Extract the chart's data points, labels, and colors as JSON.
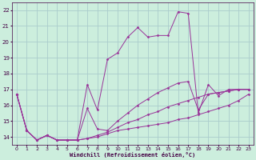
{
  "xlabel": "Windchill (Refroidissement éolien,°C)",
  "bg_color": "#cceedd",
  "grid_color": "#aacccc",
  "line_color": "#993399",
  "marker_color": "#993399",
  "xlim": [
    -0.5,
    23.5
  ],
  "ylim": [
    13.5,
    22.5
  ],
  "yticks": [
    14,
    15,
    16,
    17,
    18,
    19,
    20,
    21,
    22
  ],
  "xticks": [
    0,
    1,
    2,
    3,
    4,
    5,
    6,
    7,
    8,
    9,
    10,
    11,
    12,
    13,
    14,
    15,
    16,
    17,
    18,
    19,
    20,
    21,
    22,
    23
  ],
  "series": [
    {
      "x": [
        0,
        1,
        2,
        3,
        4,
        5,
        6,
        7,
        8,
        9,
        10,
        11,
        12,
        13,
        14,
        15,
        16,
        17,
        18,
        19,
        20,
        21,
        22,
        23
      ],
      "y": [
        16.7,
        14.4,
        13.8,
        14.1,
        13.8,
        13.8,
        13.8,
        13.9,
        14.0,
        14.2,
        14.4,
        14.5,
        14.6,
        14.7,
        14.8,
        14.9,
        15.1,
        15.2,
        15.4,
        15.6,
        15.8,
        16.0,
        16.3,
        16.7
      ]
    },
    {
      "x": [
        0,
        1,
        2,
        3,
        4,
        5,
        6,
        7,
        8,
        9,
        10,
        11,
        12,
        13,
        14,
        15,
        16,
        17,
        18,
        19,
        20,
        21,
        22,
        23
      ],
      "y": [
        16.7,
        14.4,
        13.8,
        14.1,
        13.8,
        13.8,
        13.8,
        13.9,
        14.1,
        14.3,
        14.6,
        14.9,
        15.1,
        15.4,
        15.6,
        15.9,
        16.1,
        16.3,
        16.5,
        16.7,
        16.8,
        16.9,
        17.0,
        17.0
      ]
    },
    {
      "x": [
        0,
        1,
        2,
        3,
        4,
        5,
        6,
        7,
        8,
        9,
        10,
        11,
        12,
        13,
        14,
        15,
        16,
        17,
        18,
        19,
        20,
        21,
        22,
        23
      ],
      "y": [
        16.7,
        14.4,
        13.8,
        14.1,
        13.8,
        13.8,
        13.8,
        15.8,
        14.5,
        14.4,
        15.0,
        15.5,
        16.0,
        16.4,
        16.8,
        17.1,
        17.4,
        17.5,
        15.7,
        16.7,
        16.8,
        16.9,
        17.0,
        17.0
      ]
    },
    {
      "x": [
        0,
        1,
        2,
        3,
        4,
        5,
        6,
        7,
        8,
        9,
        10,
        11,
        12,
        13,
        14,
        15,
        16,
        17,
        18,
        19,
        20,
        21,
        22,
        23
      ],
      "y": [
        16.7,
        14.4,
        13.8,
        14.1,
        13.8,
        13.8,
        13.8,
        17.3,
        15.7,
        18.9,
        19.3,
        20.3,
        20.9,
        20.3,
        20.4,
        20.4,
        21.9,
        21.8,
        15.5,
        17.3,
        16.6,
        17.0,
        17.0,
        17.0
      ]
    }
  ]
}
